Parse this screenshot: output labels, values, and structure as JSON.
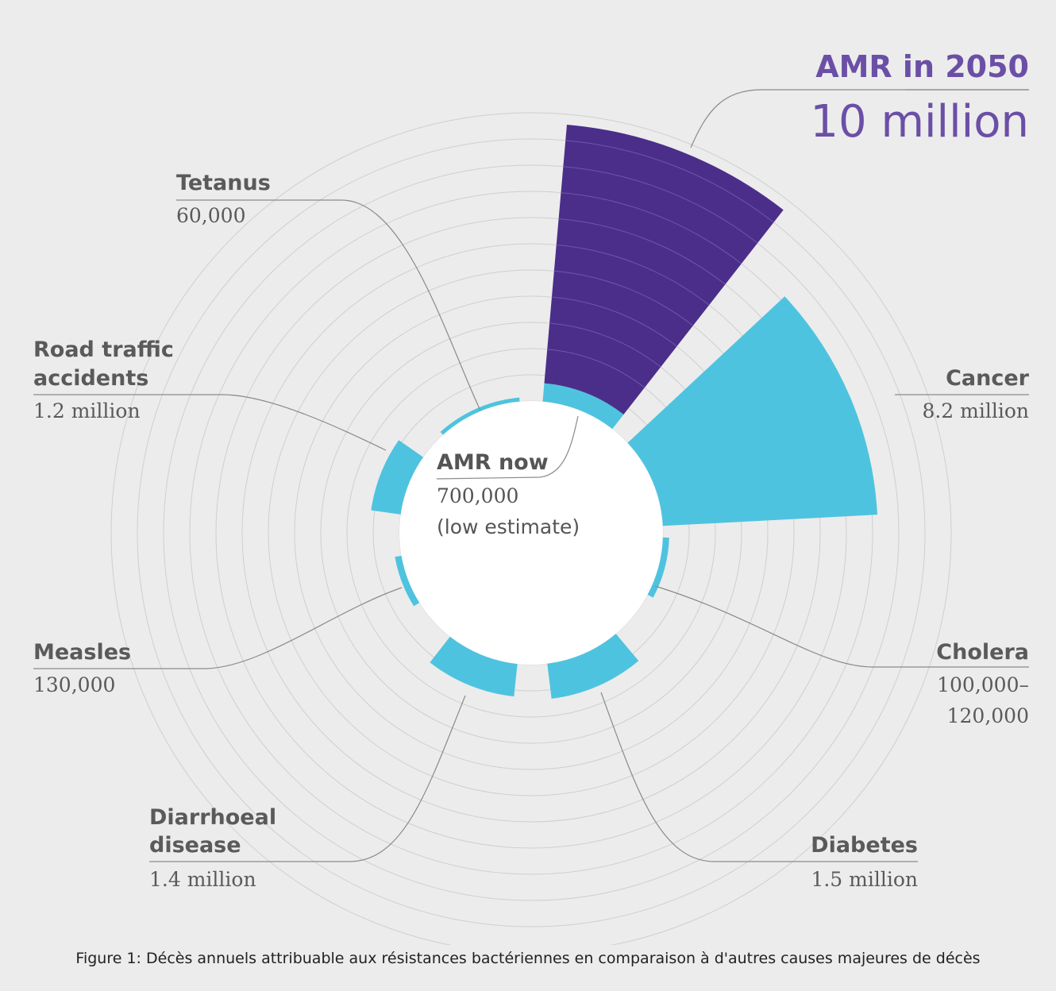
{
  "chart_data": {
    "type": "polar-bar",
    "title": "AMR in 2050",
    "caption": "Figure 1: Décès annuels attribuable aux résistances bactériennes en comparaison à d'autres causes majeures de décès",
    "series": [
      {
        "name": "AMR in 2050",
        "value_label": "10 million",
        "value": 10000000
      },
      {
        "name": "Cancer",
        "value_label": "8.2 million",
        "value": 8200000
      },
      {
        "name": "Cholera",
        "value_label_1": "100,000–",
        "value_label_2": "120,000",
        "value": 120000
      },
      {
        "name": "Diabetes",
        "value_label": "1.5 million",
        "value": 1500000
      },
      {
        "name": "Diarrhoeal disease",
        "name_line1": "Diarrhoeal",
        "name_line2": "disease",
        "value_label": "1.4 million",
        "value": 1400000
      },
      {
        "name": "Measles",
        "value_label": "130,000",
        "value": 130000
      },
      {
        "name": "Road traffic accidents",
        "name_line1": "Road traffic",
        "name_line2": "accidents",
        "value_label": "1.2 million",
        "value": 1200000
      },
      {
        "name": "Tetanus",
        "value_label": "60,000",
        "value": 60000
      },
      {
        "name": "AMR now",
        "value_label": "700,000",
        "note": "(low estimate)",
        "value": 700000
      }
    ],
    "colors": {
      "amr_2050": "#4b2e8a",
      "others": "#4ec3df",
      "rings": "#cfcfcf",
      "leader": "#8a8a8a",
      "title": "#6b4fa6"
    },
    "ring_step": 1000000,
    "rings": 10
  }
}
